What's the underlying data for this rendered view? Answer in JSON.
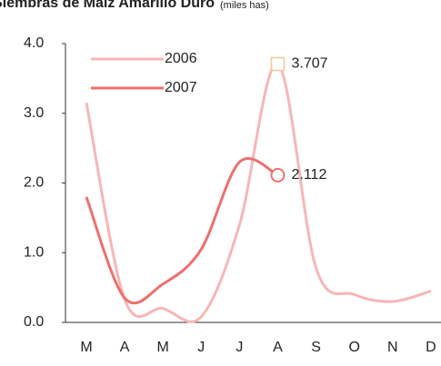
{
  "chart_data": {
    "type": "line",
    "title": "Siembras de Maíz Amarillo Duro",
    "subtitle": "(miles has)",
    "categories": [
      "M",
      "A",
      "M",
      "J",
      "J",
      "A",
      "S",
      "O",
      "N",
      "D"
    ],
    "series": [
      {
        "name": "2006",
        "color": "#f7b6b6",
        "marker": "square",
        "values": [
          3.15,
          0.33,
          0.2,
          0.08,
          1.4,
          3.707,
          0.78,
          0.4,
          0.3,
          0.45
        ],
        "value_labels": [
          null,
          null,
          null,
          null,
          null,
          "3.707",
          null,
          null,
          null,
          null
        ]
      },
      {
        "name": "2007",
        "color": "#ee6f6f",
        "marker": "circle",
        "values": [
          1.8,
          0.35,
          0.55,
          1.05,
          2.3,
          2.112,
          null,
          null,
          null,
          null
        ],
        "value_labels": [
          null,
          null,
          null,
          null,
          null,
          "2.112",
          null,
          null,
          null,
          null
        ]
      }
    ],
    "ylim": [
      0,
      4
    ],
    "yticks": [
      {
        "value": 0,
        "label": "0.0"
      },
      {
        "value": 1,
        "label": "1.0"
      },
      {
        "value": 2,
        "label": "2.0"
      },
      {
        "value": 3,
        "label": "3.0"
      },
      {
        "value": 4,
        "label": "4.0"
      }
    ],
    "legend": "top-left"
  }
}
